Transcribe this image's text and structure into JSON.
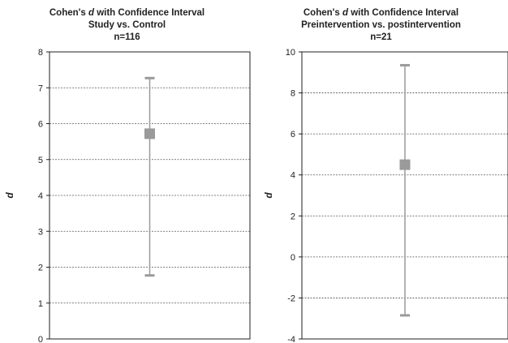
{
  "chart_data": [
    {
      "type": "errorbar",
      "title_prefix": "Cohen's ",
      "title_var": "d",
      "title_suffix": " with Confidence Interval",
      "subtitle": "Study vs. Control",
      "n_label": "n=116",
      "ylabel": "d",
      "ylim": [
        0,
        8
      ],
      "yticks": [
        0,
        1,
        2,
        3,
        4,
        5,
        6,
        7,
        8
      ],
      "ytick_labels": [
        "0",
        "1",
        "2",
        "3",
        "4",
        "5",
        "6",
        "7",
        "8"
      ],
      "grid": true,
      "point": {
        "estimate": 5.72,
        "lower": 1.77,
        "upper": 7.27
      },
      "colors": {
        "marker": "#9a9a9a",
        "errorbar": "#9a9a9a",
        "grid": "#555555",
        "frame": "#222222"
      }
    },
    {
      "type": "errorbar",
      "title_prefix": "Cohen's ",
      "title_var": "d",
      "title_suffix": " with Confidence Interval",
      "subtitle": "Preintervention vs. postintervention",
      "n_label": "n=21",
      "ylabel": "d",
      "ylim": [
        -4,
        10
      ],
      "yticks": [
        -4,
        -2,
        0,
        2,
        4,
        6,
        8,
        10
      ],
      "ytick_labels": [
        "-4",
        "-2",
        "0",
        "2",
        "4",
        "6",
        "8",
        "10"
      ],
      "grid": true,
      "point": {
        "estimate": 4.5,
        "lower": -2.85,
        "upper": 9.35
      },
      "colors": {
        "marker": "#9a9a9a",
        "errorbar": "#9a9a9a",
        "grid": "#555555",
        "frame": "#222222"
      }
    }
  ]
}
